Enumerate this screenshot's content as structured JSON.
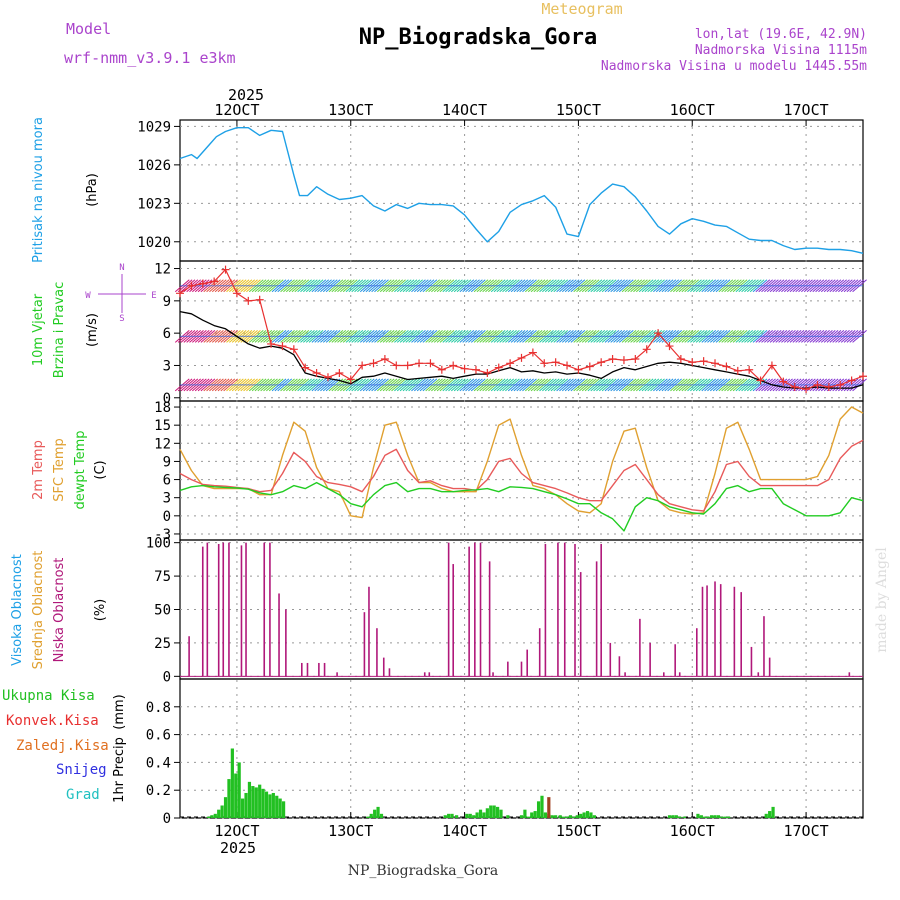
{
  "header": {
    "model_label": "Model",
    "model_name": "wrf-nmm_v3.9.1 e3km",
    "meteogram_label": "Meteogram",
    "station_title": "NP_Biogradska_Gora",
    "lonlat": "lon,lat (19.6E, 42.9N)",
    "elevation": "Nadmorska Visina 1115m",
    "model_elevation": "Nadmorska Visina u modelu 1445.55m",
    "footer_title": "NP_Biogradska_Gora",
    "watermark": "made by Angel"
  },
  "colors": {
    "pressure": "#1ea0e6",
    "wind_speed_line": "#000000",
    "wind_gust": "#e83030",
    "t2m": "#e85a5a",
    "sfc_temp": "#e0a030",
    "dewpoint": "#22cc22",
    "cloud": "#b0187a",
    "precip_total": "#22c022",
    "precip_conv": "#e83030",
    "precip_frozen": "#e07020",
    "snow": "#3030e0",
    "hail": "#20c0c0",
    "label_purple": "#aa44cc",
    "label_gold": "#e8c060"
  },
  "time_axis": {
    "year_top": "2025",
    "year_bottom": "2025",
    "tick_labels": [
      "12OCT",
      "13OCT",
      "14OCT",
      "15OCT",
      "16OCT",
      "17OCT"
    ],
    "tick_days": [
      12,
      13,
      14,
      15,
      16,
      17
    ],
    "range": [
      11.5,
      17.5
    ]
  },
  "chart_data": [
    {
      "type": "line",
      "name": "pressure",
      "ylabel_main": "Pritisak na nivou mora",
      "ylabel_unit": "(hPa)",
      "ylim": [
        1018.5,
        1029.5
      ],
      "yticks": [
        1020,
        1023,
        1026,
        1029
      ],
      "x": [
        11.5,
        11.6,
        11.65,
        11.75,
        11.82,
        11.9,
        12.0,
        12.1,
        12.2,
        12.3,
        12.4,
        12.5,
        12.55,
        12.62,
        12.7,
        12.8,
        12.9,
        13.0,
        13.1,
        13.2,
        13.3,
        13.4,
        13.5,
        13.6,
        13.7,
        13.8,
        13.9,
        14.0,
        14.1,
        14.2,
        14.3,
        14.4,
        14.5,
        14.6,
        14.7,
        14.8,
        14.9,
        15.0,
        15.1,
        15.2,
        15.3,
        15.4,
        15.5,
        15.6,
        15.7,
        15.8,
        15.9,
        16.0,
        16.1,
        16.2,
        16.3,
        16.4,
        16.5,
        16.6,
        16.7,
        16.8,
        16.9,
        17.0,
        17.1,
        17.2,
        17.3,
        17.4,
        17.5
      ],
      "values": [
        1026.5,
        1026.8,
        1026.5,
        1027.5,
        1028.2,
        1028.6,
        1028.9,
        1028.9,
        1028.3,
        1028.7,
        1028.6,
        1025.2,
        1023.6,
        1023.6,
        1024.3,
        1023.7,
        1023.3,
        1023.4,
        1023.6,
        1022.8,
        1022.4,
        1022.9,
        1022.6,
        1023.0,
        1022.9,
        1022.9,
        1022.8,
        1022.1,
        1021.0,
        1020.0,
        1020.8,
        1022.3,
        1022.9,
        1023.2,
        1023.6,
        1022.7,
        1020.6,
        1020.4,
        1022.9,
        1023.8,
        1024.5,
        1024.3,
        1023.5,
        1022.4,
        1021.2,
        1020.6,
        1021.4,
        1021.8,
        1021.6,
        1021.3,
        1021.2,
        1020.7,
        1020.2,
        1020.1,
        1020.1,
        1019.7,
        1019.4,
        1019.5,
        1019.5,
        1019.4,
        1019.4,
        1019.3,
        1019.1
      ]
    },
    {
      "type": "line",
      "name": "wind",
      "ylabel_main": "10m Vjetar",
      "ylabel_sub": "Brzina i Pravac",
      "ylabel_unit": "(m/s)",
      "compass": {
        "n": "N",
        "s": "S",
        "e": "E",
        "w": "W"
      },
      "ylim": [
        -0.3,
        12.7
      ],
      "yticks": [
        0,
        3,
        6,
        9,
        12
      ],
      "barb_levels": [
        1.2,
        5.7,
        10.4
      ],
      "x": [
        11.5,
        11.6,
        11.7,
        11.8,
        11.9,
        12.0,
        12.1,
        12.2,
        12.3,
        12.4,
        12.5,
        12.6,
        12.7,
        12.8,
        12.9,
        13.0,
        13.1,
        13.2,
        13.3,
        13.4,
        13.5,
        13.6,
        13.7,
        13.8,
        13.9,
        14.0,
        14.1,
        14.2,
        14.3,
        14.4,
        14.5,
        14.6,
        14.7,
        14.8,
        14.9,
        15.0,
        15.1,
        15.2,
        15.3,
        15.4,
        15.5,
        15.6,
        15.7,
        15.8,
        15.9,
        16.0,
        16.1,
        16.2,
        16.3,
        16.4,
        16.5,
        16.6,
        16.7,
        16.8,
        16.9,
        17.0,
        17.1,
        17.2,
        17.3,
        17.4,
        17.5
      ],
      "speed": [
        8.0,
        7.8,
        7.2,
        6.7,
        6.4,
        5.7,
        5.0,
        4.6,
        4.8,
        4.6,
        4.0,
        2.3,
        2.0,
        1.8,
        1.6,
        1.3,
        1.9,
        2.0,
        2.3,
        2.0,
        1.7,
        1.8,
        1.9,
        2.0,
        1.8,
        2.0,
        2.2,
        2.2,
        2.5,
        2.8,
        2.4,
        2.5,
        2.3,
        2.4,
        2.2,
        2.3,
        2.1,
        1.8,
        2.4,
        2.8,
        2.6,
        2.9,
        3.2,
        3.3,
        3.2,
        3.0,
        2.8,
        2.6,
        2.4,
        2.2,
        2.0,
        1.6,
        1.2,
        1.0,
        0.9,
        0.9,
        1.0,
        0.9,
        0.9,
        0.9,
        1.2
      ],
      "gust": [
        9.7,
        10.4,
        10.6,
        10.8,
        11.9,
        9.7,
        9.0,
        9.1,
        5.0,
        4.8,
        4.5,
        2.8,
        2.3,
        1.9,
        2.3,
        1.7,
        3.0,
        3.2,
        3.6,
        3.0,
        3.0,
        3.2,
        3.2,
        2.6,
        3.0,
        2.7,
        2.6,
        2.3,
        2.8,
        3.2,
        3.7,
        4.2,
        3.2,
        3.3,
        3.0,
        2.6,
        2.9,
        3.3,
        3.6,
        3.5,
        3.6,
        4.5,
        6.0,
        4.8,
        3.6,
        3.3,
        3.4,
        3.2,
        2.9,
        2.5,
        2.6,
        1.6,
        3.0,
        1.5,
        1.0,
        0.8,
        1.2,
        1.0,
        1.2,
        1.6,
        2.0
      ]
    },
    {
      "type": "line",
      "name": "temperature",
      "ylabel_t2m": "2m Temp",
      "ylabel_sfc": "SFC Temp",
      "ylabel_dew": "dewpt Temp",
      "ylabel_unit": "(C)",
      "ylim": [
        -4.0,
        19.0
      ],
      "yticks": [
        -3,
        0,
        3,
        6,
        9,
        12,
        15,
        18
      ],
      "x": [
        11.5,
        11.6,
        11.7,
        11.8,
        11.9,
        12.0,
        12.1,
        12.2,
        12.3,
        12.4,
        12.5,
        12.6,
        12.7,
        12.8,
        12.9,
        13.0,
        13.1,
        13.2,
        13.3,
        13.4,
        13.5,
        13.6,
        13.7,
        13.8,
        13.9,
        14.0,
        14.1,
        14.2,
        14.3,
        14.4,
        14.5,
        14.6,
        14.7,
        14.8,
        14.9,
        15.0,
        15.1,
        15.2,
        15.3,
        15.4,
        15.5,
        15.6,
        15.7,
        15.8,
        15.9,
        16.0,
        16.1,
        16.2,
        16.3,
        16.4,
        16.5,
        16.6,
        16.7,
        16.8,
        16.9,
        17.0,
        17.1,
        17.2,
        17.3,
        17.4,
        17.5
      ],
      "t2m": [
        7.0,
        6.0,
        5.2,
        5.0,
        4.9,
        4.7,
        4.5,
        4.0,
        4.2,
        7.0,
        10.5,
        9.0,
        6.5,
        5.5,
        5.2,
        4.8,
        4.0,
        6.5,
        10.0,
        11.0,
        7.5,
        5.5,
        5.8,
        5.0,
        4.5,
        4.5,
        4.2,
        6.0,
        9.0,
        9.5,
        7.0,
        5.5,
        5.0,
        4.5,
        3.8,
        3.0,
        2.5,
        2.5,
        5.0,
        7.5,
        8.5,
        6.0,
        3.5,
        2.0,
        1.5,
        1.0,
        0.8,
        4.0,
        8.5,
        9.0,
        6.5,
        5.0,
        5.0,
        5.0,
        5.0,
        5.0,
        5.0,
        6.0,
        9.5,
        11.5,
        12.5
      ],
      "sfc": [
        11.0,
        7.5,
        5.0,
        4.5,
        4.5,
        4.5,
        4.5,
        3.5,
        3.5,
        10.0,
        15.5,
        14.0,
        8.0,
        4.5,
        4.0,
        0.0,
        -0.3,
        8.0,
        15.0,
        15.5,
        10.0,
        5.5,
        5.5,
        4.5,
        4.0,
        4.0,
        4.0,
        9.0,
        15.0,
        16.0,
        10.0,
        5.0,
        4.5,
        3.5,
        2.0,
        0.8,
        0.5,
        2.0,
        9.0,
        14.0,
        14.5,
        8.0,
        2.5,
        1.0,
        0.5,
        0.3,
        0.5,
        7.0,
        14.5,
        15.5,
        11.0,
        6.0,
        6.0,
        6.0,
        6.0,
        6.0,
        6.5,
        10.0,
        16.0,
        18.0,
        17.0
      ],
      "dew": [
        4.2,
        4.8,
        5.0,
        4.8,
        4.7,
        4.6,
        4.4,
        3.8,
        3.5,
        4.0,
        5.0,
        4.5,
        5.5,
        4.5,
        3.5,
        2.0,
        1.5,
        3.5,
        5.0,
        5.5,
        4.0,
        4.5,
        4.5,
        4.0,
        4.0,
        4.2,
        4.3,
        4.5,
        4.0,
        4.8,
        4.7,
        4.5,
        4.0,
        3.5,
        2.8,
        2.0,
        2.0,
        0.5,
        -0.5,
        -2.5,
        1.5,
        3.0,
        2.5,
        1.5,
        1.0,
        0.5,
        0.3,
        2.0,
        4.5,
        5.0,
        4.0,
        4.5,
        4.5,
        2.0,
        1.0,
        0.0,
        0.0,
        0.0,
        0.5,
        3.0,
        2.5
      ]
    },
    {
      "type": "bar",
      "name": "cloud",
      "ylabel_high": "Visoka Oblacnost",
      "ylabel_mid": "Srednja Oblacnost",
      "ylabel_low": "Niska Oblacnost",
      "ylabel_unit": "(%)",
      "ylim": [
        -2,
        102
      ],
      "yticks": [
        0,
        25,
        50,
        75,
        100
      ],
      "x": [
        11.58,
        11.7,
        11.74,
        11.84,
        11.88,
        11.93,
        12.04,
        12.08,
        12.24,
        12.29,
        12.37,
        12.43,
        12.57,
        12.62,
        12.72,
        12.77,
        12.88,
        13.12,
        13.16,
        13.23,
        13.29,
        13.34,
        13.65,
        13.69,
        13.86,
        13.9,
        14.04,
        14.09,
        14.14,
        14.22,
        14.25,
        14.38,
        14.5,
        14.55,
        14.66,
        14.71,
        14.82,
        14.88,
        14.97,
        15.02,
        15.16,
        15.2,
        15.28,
        15.36,
        15.41,
        15.54,
        15.63,
        15.75,
        15.85,
        15.89,
        16.04,
        16.09,
        16.13,
        16.2,
        16.25,
        16.37,
        16.43,
        16.52,
        16.58,
        16.63,
        16.68,
        17.38
      ],
      "values": [
        30,
        97,
        100,
        99,
        100,
        100,
        98,
        100,
        100,
        100,
        62,
        50,
        10,
        10,
        10,
        10,
        3,
        48,
        67,
        36,
        14,
        6,
        3,
        3,
        100,
        84,
        97,
        100,
        100,
        86,
        3,
        11,
        11,
        20,
        36,
        99,
        100,
        100,
        99,
        78,
        86,
        99,
        25,
        15,
        3,
        43,
        25,
        3,
        24,
        3,
        36,
        67,
        68,
        71,
        69,
        67,
        63,
        22,
        3,
        45,
        14,
        3
      ]
    },
    {
      "type": "bar",
      "name": "precip",
      "ylabel_main": "1hr Precip",
      "ylabel_unit": "(mm)",
      "legend": {
        "total": "Ukupna Kisa",
        "conv": "Konvek.Kisa",
        "frozen": "Zaledj.Kisa",
        "snow": "Snijeg",
        "hail": "Grad"
      },
      "ylim": [
        0,
        1.0
      ],
      "yticks": [
        0,
        0.2,
        0.4,
        0.6,
        0.8
      ],
      "ytick_labels": [
        "0",
        "0.2",
        "0.4",
        "0.6",
        "0.8"
      ],
      "x": [
        11.75,
        11.78,
        11.81,
        11.84,
        11.87,
        11.9,
        11.93,
        11.96,
        11.99,
        12.02,
        12.05,
        12.08,
        12.11,
        12.14,
        12.17,
        12.2,
        12.23,
        12.26,
        12.29,
        12.32,
        12.35,
        12.38,
        12.41,
        13.15,
        13.18,
        13.21,
        13.24,
        13.27,
        13.83,
        13.86,
        13.89,
        13.93,
        14.02,
        14.05,
        14.08,
        14.11,
        14.14,
        14.17,
        14.2,
        14.23,
        14.26,
        14.29,
        14.32,
        14.38,
        14.5,
        14.53,
        14.56,
        14.59,
        14.62,
        14.65,
        14.68,
        14.71,
        14.74,
        14.77,
        14.8,
        14.84,
        14.87,
        14.9,
        14.93,
        14.96,
        14.99,
        15.02,
        15.05,
        15.08,
        15.11,
        15.14,
        15.8,
        15.83,
        15.86,
        15.89,
        15.93,
        16.05,
        16.08,
        16.11,
        16.14,
        16.17,
        16.2,
        16.23,
        16.26,
        16.29,
        16.32,
        16.65,
        16.68,
        16.71
      ],
      "values": [
        0.01,
        0.02,
        0.03,
        0.06,
        0.09,
        0.15,
        0.28,
        0.5,
        0.32,
        0.4,
        0.14,
        0.18,
        0.26,
        0.23,
        0.22,
        0.24,
        0.21,
        0.19,
        0.17,
        0.18,
        0.16,
        0.14,
        0.12,
        0.01,
        0.03,
        0.06,
        0.08,
        0.03,
        0.02,
        0.03,
        0.03,
        0.02,
        0.03,
        0.03,
        0.02,
        0.04,
        0.06,
        0.04,
        0.07,
        0.09,
        0.09,
        0.08,
        0.06,
        0.02,
        0.02,
        0.06,
        0.01,
        0.04,
        0.05,
        0.12,
        0.16,
        0.04,
        0.03,
        0.02,
        0.02,
        0.02,
        0.01,
        0.01,
        0.02,
        0.01,
        0.02,
        0.03,
        0.04,
        0.05,
        0.04,
        0.02,
        0.02,
        0.02,
        0.02,
        0.01,
        0.01,
        0.03,
        0.02,
        0.01,
        0.01,
        0.02,
        0.02,
        0.02,
        0.01,
        0.01,
        0.01,
        0.03,
        0.05,
        0.08
      ],
      "conv_x": [
        14.74
      ],
      "conv_values": [
        0.15
      ]
    }
  ]
}
